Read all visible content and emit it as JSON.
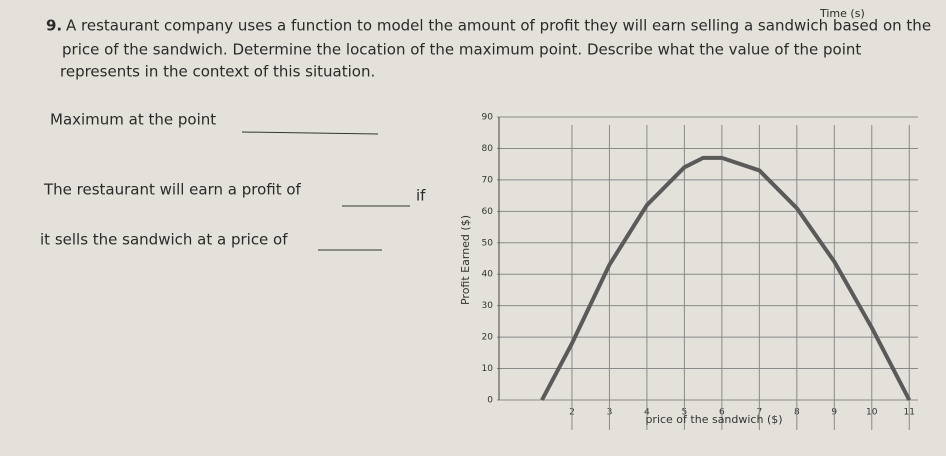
{
  "header": {
    "timer": "Time (s)"
  },
  "question": {
    "number": "9.",
    "lines": [
      "A restaurant company uses a function to model the amount of profit they will earn selling a sandwich based on the",
      "price of the sandwich.  Determine the location of the maximum point.  Describe what the value of the point",
      "represents in the context of this situation."
    ]
  },
  "prompts": [
    "Maximum at the point",
    "The restaurant will earn a profit of",
    "if",
    "it sells the sandwich at a price of"
  ],
  "chart_data": {
    "type": "line",
    "y_label": "Profit Earned ($)",
    "x_label": "price of the sandwich ($)",
    "x": [
      1.2,
      2,
      3,
      4,
      5,
      5.5,
      6,
      7,
      8,
      9,
      10,
      11
    ],
    "series": [
      {
        "color": "#5a5a5a",
        "values": [
          0,
          18,
          43,
          62,
          74,
          77,
          77,
          73,
          61,
          44,
          23,
          0
        ]
      }
    ],
    "xlim": [
      0,
      11.5
    ],
    "ylim": [
      0,
      90
    ],
    "xticks": [
      2,
      3,
      4,
      5,
      6,
      7,
      8,
      9,
      10,
      11
    ],
    "yticks": [
      0,
      10,
      20,
      30,
      40,
      50,
      60,
      70,
      80,
      90
    ],
    "grid": true
  }
}
